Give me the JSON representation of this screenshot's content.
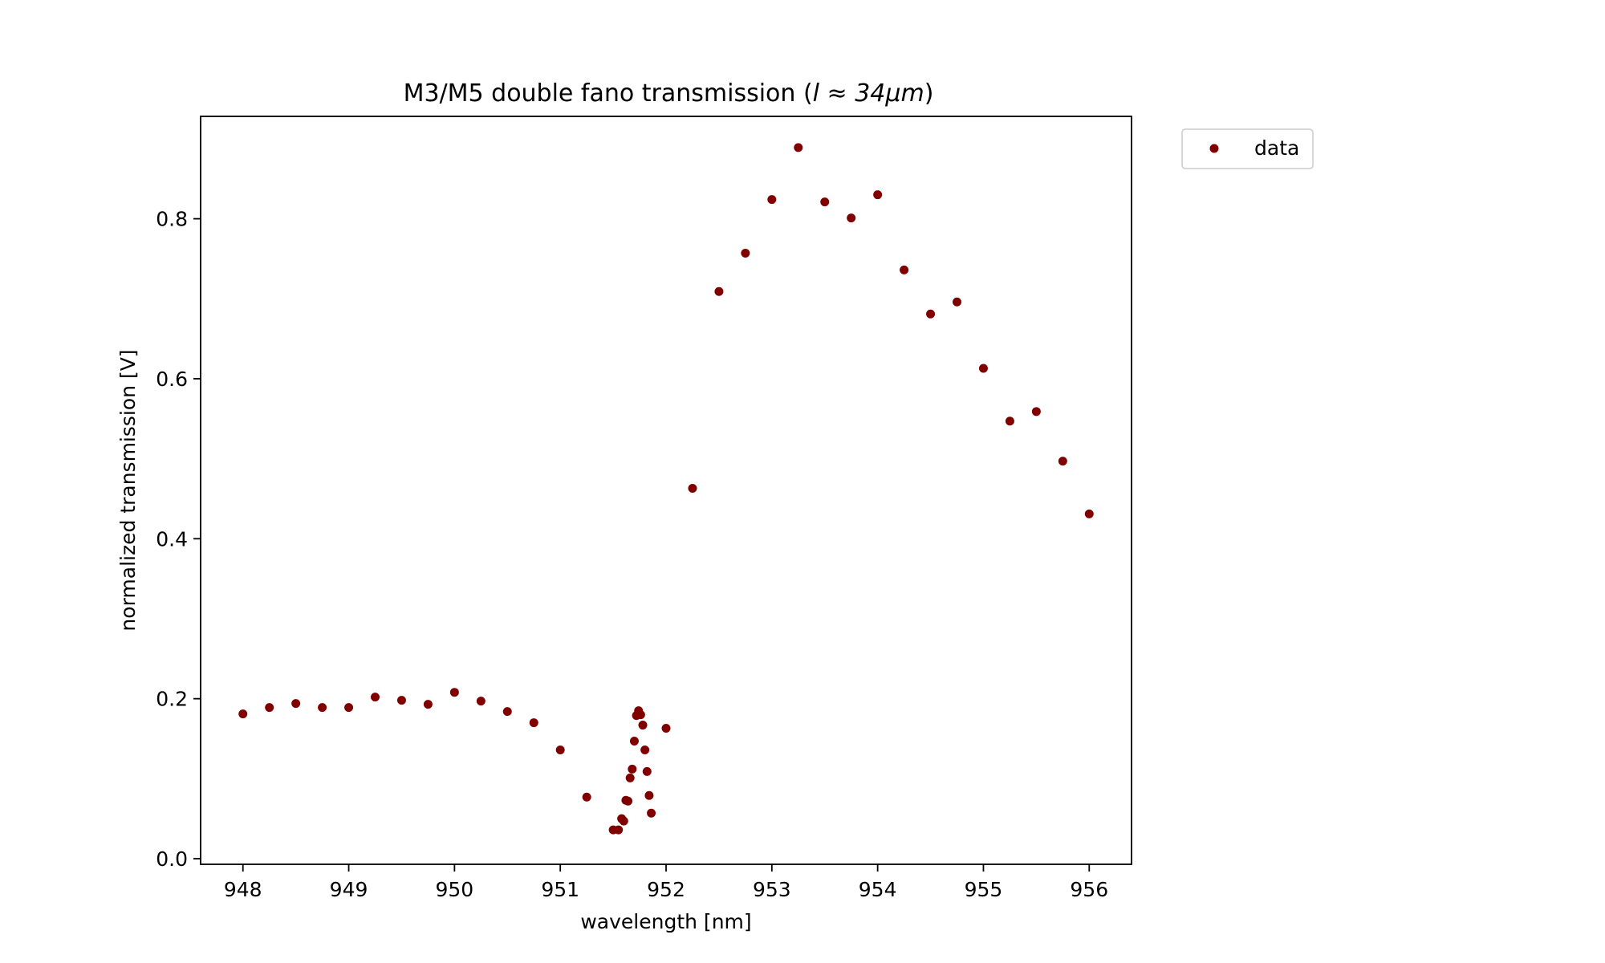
{
  "chart_data": {
    "type": "scatter",
    "title": "M3/M5 double fano transmission (",
    "title_math": "l ≈ 34μm",
    "title_close": ")",
    "xlabel": "wavelength [nm]",
    "ylabel": "normalized transmission [V]",
    "xlim": [
      947.6,
      956.4
    ],
    "ylim": [
      -0.007,
      0.928
    ],
    "xticks": [
      948,
      949,
      950,
      951,
      952,
      953,
      954,
      955,
      956
    ],
    "xtick_labels": [
      "948",
      "949",
      "950",
      "951",
      "952",
      "953",
      "954",
      "955",
      "956"
    ],
    "yticks": [
      0.0,
      0.2,
      0.4,
      0.6,
      0.8
    ],
    "ytick_labels": [
      "0.0",
      "0.2",
      "0.4",
      "0.6",
      "0.8"
    ],
    "legend_position": "outside-top-right",
    "grid": false,
    "series": [
      {
        "name": "data",
        "color": "#800000",
        "x": [
          948.0,
          948.25,
          948.5,
          948.75,
          949.0,
          949.25,
          949.5,
          949.75,
          950.0,
          950.25,
          950.5,
          950.75,
          951.0,
          951.25,
          951.5,
          951.55,
          951.58,
          951.6,
          951.62,
          951.64,
          951.66,
          951.68,
          951.7,
          951.72,
          951.74,
          951.76,
          951.78,
          951.8,
          951.82,
          951.84,
          951.86,
          952.0,
          952.25,
          952.5,
          952.75,
          953.0,
          953.25,
          953.5,
          953.75,
          954.0,
          954.25,
          954.5,
          954.75,
          955.0,
          955.25,
          955.5,
          955.75,
          956.0
        ],
        "y": [
          0.181,
          0.189,
          0.194,
          0.189,
          0.189,
          0.202,
          0.198,
          0.193,
          0.208,
          0.197,
          0.184,
          0.17,
          0.136,
          0.077,
          0.036,
          0.036,
          0.05,
          0.047,
          0.073,
          0.072,
          0.101,
          0.112,
          0.147,
          0.179,
          0.185,
          0.18,
          0.167,
          0.136,
          0.109,
          0.079,
          0.057,
          0.163,
          0.463,
          0.709,
          0.757,
          0.824,
          0.889,
          0.821,
          0.801,
          0.83,
          0.736,
          0.681,
          0.696,
          0.613,
          0.547,
          0.559,
          0.497,
          0.431
        ]
      }
    ]
  }
}
